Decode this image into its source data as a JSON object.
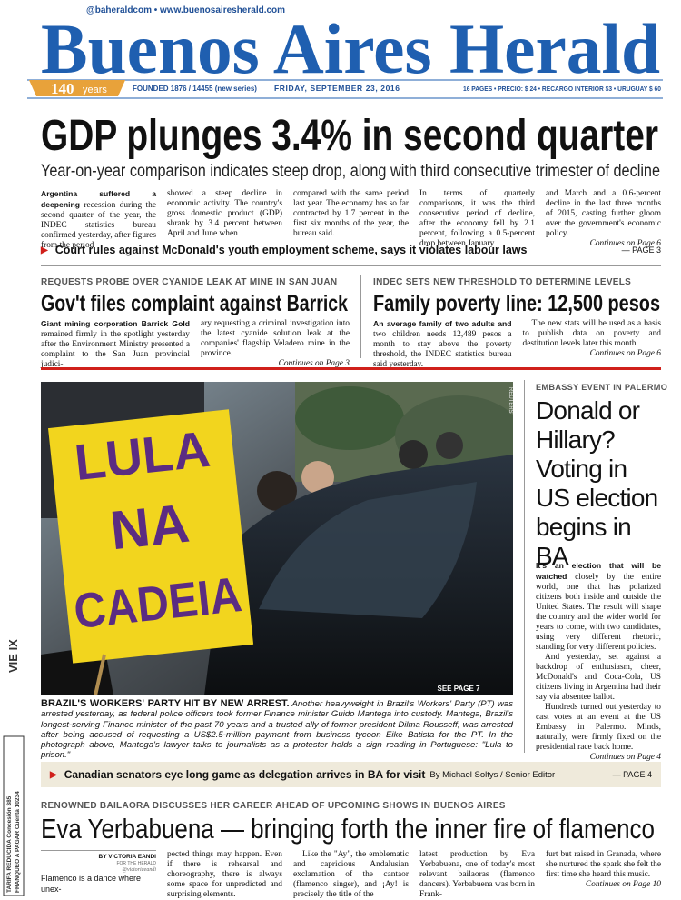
{
  "masthead": {
    "social": "@baheraldcom • www.buenosairesherald.com",
    "title": "Buenos Aires Herald",
    "anniversary": "140",
    "anniversary_unit": "years",
    "founded": "FOUNDED 1876 / 14455 (new series)",
    "date": "FRIDAY, SEPTEMBER 23, 2016",
    "price": "16 PAGES • PRECIO: $ 24 • RECARGO INTERIOR $3 • URUGUAY $ 60"
  },
  "lead_story": {
    "headline": "GDP plunges 3.4% in second quarter",
    "subhead": "Year-on-year comparison indicates steep drop, along with third consecutive trimester of decline",
    "lead": "Argentina suffered a deepening",
    "columns": [
      "recession during the second quarter of the year, the INDEC statistics bureau confirmed yesterday, after figures from the period",
      "showed a steep decline in economic activity. The country's gross domestic product (GDP) shrank by 3.4 percent between April and June when",
      "compared with the same period last year. The economy has so far contracted by 1.7 percent in the first six months of the year, the bureau said.",
      "In terms of quarterly comparisons, it was the third consecutive period of decline, after the economy fell by 2.1 percent, following a 0.5-percent drop between January",
      "and March and a 0.6-percent decline in the last three months of 2015, casting further gloom over the government's economic policy."
    ],
    "continues": "Continues on Page 6"
  },
  "teaser_1": {
    "text": "Court rules against McDonald's youth employment scheme, says it violates labour laws",
    "page": "— PAGE 3"
  },
  "barrick": {
    "kicker": "REQUESTS PROBE OVER CYANIDE LEAK AT MINE IN SAN JUAN",
    "headline": "Gov't files complaint against Barrick",
    "lead": "Giant mining corporation Barrick Gold",
    "columns": [
      "remained firmly in the spotlight yesterday after the Environment Ministry presented a complaint to the San Juan provincial judici-",
      "ary requesting a criminal investigation into the latest cyanide solution leak at the companies' flagship Veladero mine in the province."
    ],
    "continues": "Continues on Page 3"
  },
  "poverty": {
    "kicker": "INDEC SETS NEW THRESHOLD TO DETERMINE LEVELS",
    "headline": "Family poverty line: 12,500 pesos",
    "lead": "An average family of two adults and",
    "columns": [
      "two children needs 12,489 pesos a month to stay above the poverty threshold, the INDEC statistics bureau said yesterday.",
      "The new stats will be used as a basis to publish data on poverty and destitution levels later this month."
    ],
    "continues": "Continues on Page 6"
  },
  "photo": {
    "sign": [
      "LULA",
      "NA",
      "CADEIA"
    ],
    "see_page": "SEE PAGE 7",
    "credit": "REUTERS",
    "caption_lead": "BRAZIL'S WORKERS' PARTY HIT BY NEW ARREST.",
    "caption": "Another heavyweight in Brazil's Workers' Party (PT) was arrested yesterday, as federal police officers took former Finance minister Guido Mantega into custody. Mantega, Brazil's longest-serving Finance minister of the past 70 years and a trusted ally of former president Dilma Rousseff, was arrested after being accused of requesting a US$2.5-million payment from business tycoon Eike Batista for the PT. In the photograph above, Mantega's lawyer talks to journalists as a protester holds a sign reading in Portuguese: \"Lula to prison.\""
  },
  "election": {
    "kicker": "EMBASSY EVENT IN PALERMO",
    "headline": "Donald or Hillary? Voting in US election begins in BA",
    "lead": "It's an election that will be watched",
    "paragraphs": [
      "closely by the entire world, one that has polarized citizens both inside and outside the United States. The result will shape the country and the wider world for years to come, with two candidates, using very different rhetoric, standing for very different policies.",
      "And yesterday, set against a backdrop of enthusiasm, cheer, McDonald's and Coca-Cola, US citizens living in Argentina had their say via absentee ballot.",
      "Hundreds turned out yesterday to cast votes at an event at the US Embassy in Palermo. Minds, naturally, were firmly fixed on the presidential race back home."
    ],
    "continues": "Continues on Page 4"
  },
  "teaser_2": {
    "text": "Canadian senators eye long game as delegation arrives in BA for visit",
    "byline": "By Michael Soltys / Senior Editor",
    "page": "— PAGE 4"
  },
  "flamenco": {
    "kicker": "RENOWNED BAILAORA DISCUSSES HER CAREER AHEAD OF UPCOMING SHOWS IN BUENOS AIRES",
    "headline": "Eva Yerbabuena — bringing forth the inner fire of flamenco",
    "byline": "BY VICTORIA EANDI",
    "byline_role": "FOR THE HERALD",
    "byline_handle": "@victoriaeandi",
    "lead": "Flamenco is a dance where unex-",
    "columns": [
      "pected things may happen. Even if there is rehearsal and choreography, there is always some space for unpredicted and surprising elements.",
      "Like the \"Ay\", the emblematic and capricious Andalusian exclamation of the cantaor (flamenco singer), and ¡Ay! is precisely the title of the",
      "latest production by Eva Yerbabuena, one of today's most relevant bailaoras (flamenco dancers). Yerbabuena was born in Frank-",
      "furt but raised in Granada, where she nurtured the spark she felt the first time she heard this music."
    ],
    "continues": "Continues on Page 10"
  },
  "margin": {
    "day": "VIE IX",
    "postal_1": "TARIFA REDUCIDA Concesión 385",
    "postal_2": "FRANQUEO A PAGAR Cuenta 10234"
  }
}
